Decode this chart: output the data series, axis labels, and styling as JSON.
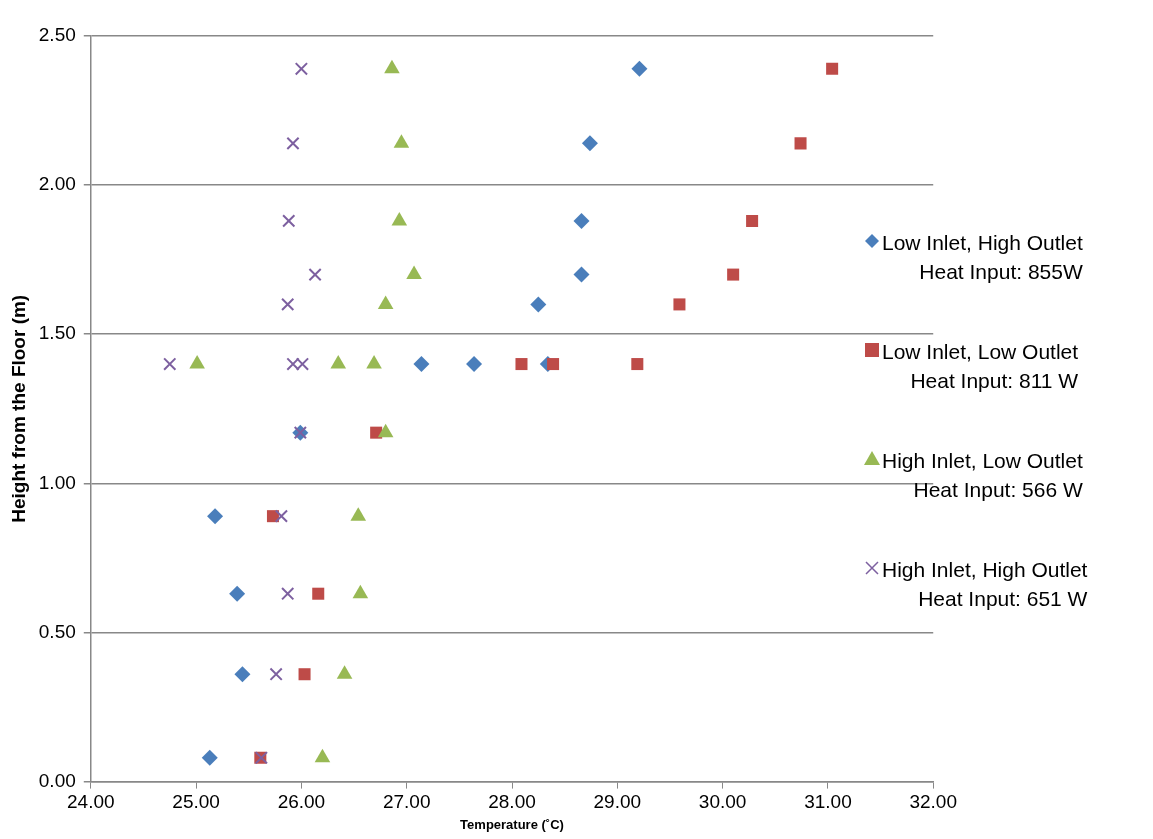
{
  "chart_data": {
    "type": "scatter",
    "xlabel": "Temperature (˚C)",
    "ylabel": "Height from the Floor (m)",
    "xlim": [
      24,
      32
    ],
    "xticks": [
      {
        "value": 24,
        "label": "24.00"
      },
      {
        "value": 25,
        "label": "25.00"
      },
      {
        "value": 26,
        "label": "26.00"
      },
      {
        "value": 27,
        "label": "27.00"
      },
      {
        "value": 28,
        "label": "28.00"
      },
      {
        "value": 29,
        "label": "29.00"
      },
      {
        "value": 30,
        "label": "30.00"
      },
      {
        "value": 31,
        "label": "31.00"
      },
      {
        "value": 32,
        "label": "32.00"
      }
    ],
    "ylim": [
      0,
      2.5
    ],
    "yticks": [
      {
        "value": 0,
        "label": "0.00"
      },
      {
        "value": 0.5,
        "label": "0.50"
      },
      {
        "value": 1,
        "label": "1.00"
      },
      {
        "value": 1.5,
        "label": "1.50"
      },
      {
        "value": 2,
        "label": "2.00"
      },
      {
        "value": 2.5,
        "label": "2.50"
      }
    ],
    "grid": "y",
    "legend": "right",
    "series": [
      {
        "name": "Low Inlet, High Outlet\nHeat Input: 855W",
        "color": "#4a7ebb",
        "marker": "diamond",
        "x": [
          25.13,
          25.44,
          25.39,
          25.18,
          25.99,
          27.14,
          27.64,
          28.34,
          28.25,
          28.66,
          28.66,
          28.74,
          29.21
        ],
        "values": [
          0.08,
          0.36,
          0.63,
          0.89,
          1.17,
          1.4,
          1.4,
          1.4,
          1.6,
          1.7,
          1.88,
          2.14,
          2.39
        ]
      },
      {
        "name": "Low Inlet, Low Outlet\nHeat Input: 811 W",
        "color": "#be4b48",
        "marker": "square",
        "x": [
          25.61,
          26.03,
          26.16,
          25.73,
          26.71,
          28.09,
          28.39,
          29.19,
          29.59,
          30.1,
          30.28,
          30.74,
          31.04
        ],
        "values": [
          0.08,
          0.36,
          0.63,
          0.89,
          1.17,
          1.4,
          1.4,
          1.4,
          1.6,
          1.7,
          1.88,
          2.14,
          2.39
        ]
      },
      {
        "name": "High Inlet, Low Outlet\nHeat Input: 566 W",
        "color": "#98b954",
        "marker": "triangle",
        "x": [
          26.2,
          26.41,
          26.56,
          26.54,
          26.8,
          25.01,
          26.35,
          26.69,
          26.8,
          27.07,
          26.93,
          26.95,
          26.86
        ],
        "values": [
          0.08,
          0.36,
          0.63,
          0.89,
          1.17,
          1.4,
          1.4,
          1.4,
          1.6,
          1.7,
          1.88,
          2.14,
          2.39
        ]
      },
      {
        "name": "High Inlet, High Outlet\nHeat Input: 651 W",
        "color": "#7d60a0",
        "marker": "cross",
        "x": [
          25.62,
          25.76,
          25.87,
          25.81,
          25.99,
          24.75,
          25.92,
          26.01,
          25.87,
          26.13,
          25.88,
          25.92,
          26.0
        ],
        "values": [
          0.08,
          0.36,
          0.63,
          0.89,
          1.17,
          1.4,
          1.4,
          1.4,
          1.6,
          1.7,
          1.88,
          2.14,
          2.39
        ]
      }
    ]
  }
}
